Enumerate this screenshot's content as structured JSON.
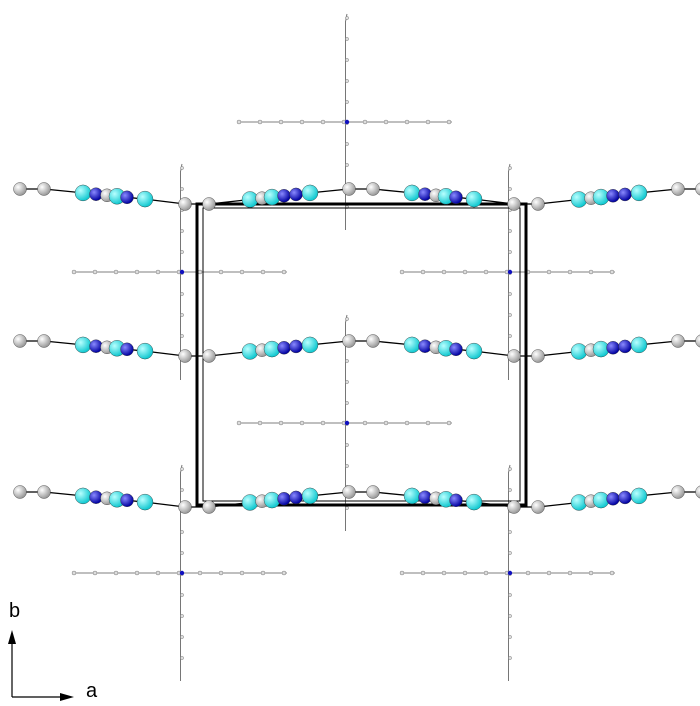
{
  "axes": {
    "vertical": "b",
    "horizontal": "a"
  }
}
